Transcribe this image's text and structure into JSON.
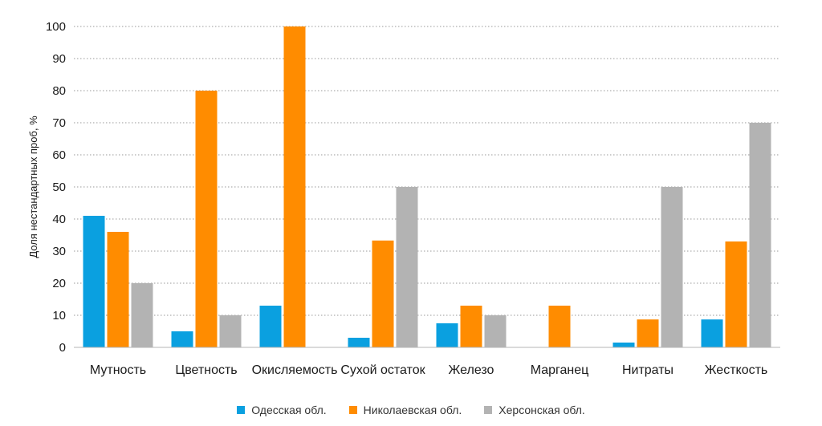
{
  "chart_data": {
    "type": "bar",
    "ylabel": "Доля нестандартных проб, %",
    "xlabel": "",
    "ylim": [
      0,
      100
    ],
    "yticks": [
      0,
      10,
      20,
      30,
      40,
      50,
      60,
      70,
      80,
      90,
      100
    ],
    "grid": "horizontal-dotted",
    "legend_position": "bottom-center",
    "categories": [
      "Мутность",
      "Цветность",
      "Окисляемость",
      "Сухой остаток",
      "Железо",
      "Марганец",
      "Нитраты",
      "Жесткость"
    ],
    "series": [
      {
        "name": "Одесская обл.",
        "color": "#0aa0e0",
        "values": [
          41,
          5,
          13,
          3,
          7.5,
          0,
          1.5,
          8.7
        ]
      },
      {
        "name": "Николаевская обл.",
        "color": "#ff8c00",
        "values": [
          36,
          80,
          100,
          33.3,
          13,
          13,
          8.7,
          33
        ]
      },
      {
        "name": "Херсонская обл.",
        "color": "#b3b3b3",
        "values": [
          20,
          10,
          0,
          50,
          10,
          0,
          50,
          70
        ]
      }
    ]
  }
}
